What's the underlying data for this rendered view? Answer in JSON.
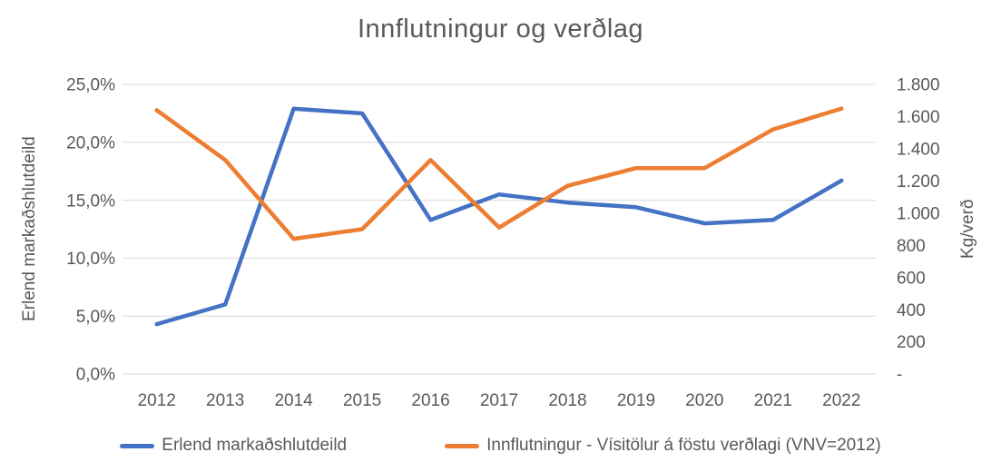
{
  "title": "Innflutningur og verðlag",
  "colors": {
    "series_blue": "#4472C4",
    "series_orange": "#ED7D31",
    "text": "#595959",
    "gridline": "#D9D9D9",
    "background": "#FFFFFF"
  },
  "left_axis": {
    "title": "Erlend markaðshlutdeild",
    "tick_labels": [
      "25,0%",
      "20,0%",
      "15,0%",
      "10,0%",
      "5,0%",
      "0,0%"
    ],
    "min": 0,
    "max": 25
  },
  "right_axis": {
    "title": "Kg/verð",
    "tick_labels": [
      "1.800",
      "1.600",
      "1.400",
      "1.200",
      "1.000",
      "800",
      "600",
      "400",
      "200",
      "-"
    ],
    "min": 0,
    "max": 1800
  },
  "x_axis": {
    "tick_labels": [
      "2012",
      "2013",
      "2014",
      "2015",
      "2016",
      "2017",
      "2018",
      "2019",
      "2020",
      "2021",
      "2022"
    ]
  },
  "chart_data": {
    "type": "line",
    "title": "Innflutningur og verðlag",
    "categories": [
      2012,
      2013,
      2014,
      2015,
      2016,
      2017,
      2018,
      2019,
      2020,
      2021,
      2022
    ],
    "grid": true,
    "legend_position": "bottom",
    "left_ylim": [
      0,
      25
    ],
    "right_ylim": [
      0,
      1800
    ],
    "left_ylabel": "Erlend markaðshlutdeild",
    "right_ylabel": "Kg/verð",
    "series": [
      {
        "id": "erlend-markadshlutdeild",
        "name": "Erlend markaðshlutdeild",
        "axis": "left",
        "unit": "%",
        "color": "#4472C4",
        "values": [
          4.3,
          6.0,
          22.9,
          22.5,
          13.3,
          15.5,
          14.8,
          14.4,
          13.0,
          13.3,
          16.7
        ]
      },
      {
        "id": "innflutningur-visitolur",
        "name": "Innflutningur - Vísitölur á föstu verðlagi (VNV=2012)",
        "axis": "right",
        "unit": "Kg/verð",
        "color": "#ED7D31",
        "values": [
          1640,
          1330,
          840,
          900,
          1330,
          910,
          1170,
          1280,
          1280,
          1520,
          1650
        ]
      }
    ]
  }
}
